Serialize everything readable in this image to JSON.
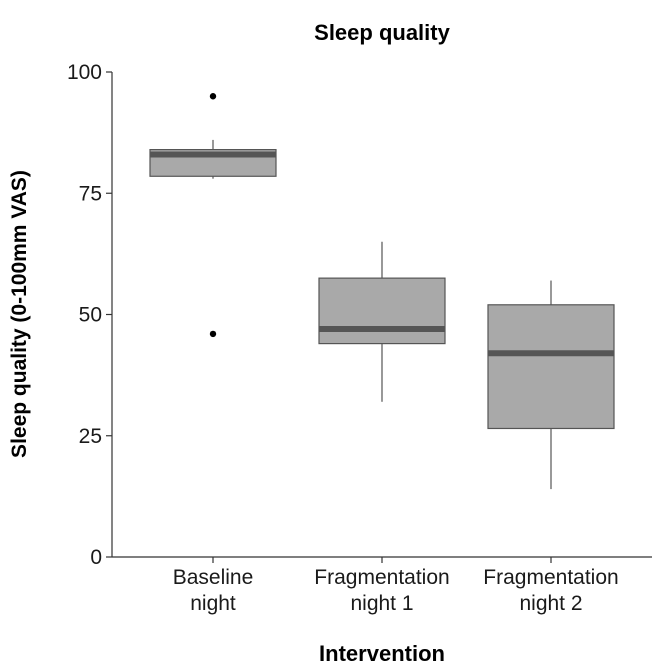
{
  "chart_data": {
    "type": "box",
    "title": "Sleep quality",
    "xlabel": "Intervention",
    "ylabel": "Sleep quality (0-100mm VAS)",
    "ylim": [
      0,
      100
    ],
    "yticks": [
      0,
      25,
      50,
      75,
      100
    ],
    "categories": [
      [
        "Baseline",
        "night"
      ],
      [
        "Fragmentation",
        "night 1"
      ],
      [
        "Fragmentation",
        "night 2"
      ]
    ],
    "boxes": [
      {
        "category": "Baseline night",
        "whisker_low": 78,
        "q1": 78.5,
        "median": 83,
        "q3": 84,
        "whisker_high": 86,
        "outliers": [
          95,
          46
        ]
      },
      {
        "category": "Fragmentation night 1",
        "whisker_low": 32,
        "q1": 44,
        "median": 47,
        "q3": 57.5,
        "whisker_high": 65,
        "outliers": []
      },
      {
        "category": "Fragmentation night 2",
        "whisker_low": 14,
        "q1": 26.5,
        "median": 42,
        "q3": 52,
        "whisker_high": 57,
        "outliers": []
      }
    ],
    "box_fill": "#a9a9a9",
    "box_stroke": "#555555",
    "median_color": "#555555",
    "grid": false,
    "legend": "none"
  }
}
